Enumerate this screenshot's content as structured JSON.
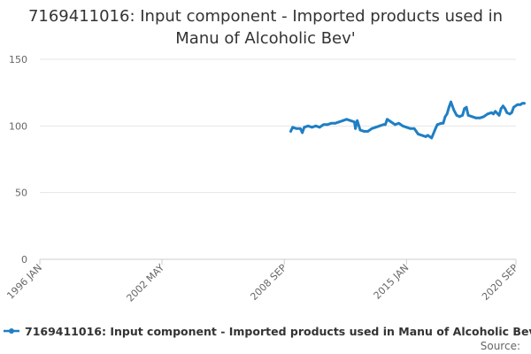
{
  "title_lines": [
    "7169411016: Input component - Imported products used in",
    "Manu of Alcoholic Bev'"
  ],
  "source_label": "Source:",
  "colors": {
    "series": "#1f7fc4",
    "grid": "#e6e6e6",
    "axis": "#cccccc"
  },
  "chart_data": {
    "type": "line",
    "title": "7169411016: Input component - Imported products used in Manu of Alcoholic Bev'",
    "xlabel": "",
    "ylabel": "",
    "ylim": [
      0,
      150
    ],
    "yticks": [
      0,
      50,
      100,
      150
    ],
    "xlim": [
      1996.0,
      2020.67
    ],
    "xticks": [
      {
        "label": "1996 JAN",
        "value": 1996.0
      },
      {
        "label": "2002 MAY",
        "value": 2002.33
      },
      {
        "label": "2008 SEP",
        "value": 2008.67
      },
      {
        "label": "2015 JAN",
        "value": 2015.0
      },
      {
        "label": "2020 SEP",
        "value": 2020.67
      }
    ],
    "grid": "horizontal",
    "legend_position": "bottom",
    "series": [
      {
        "name": "7169411016: Input component - Imported products used in Manu of Alcoholic Bev'",
        "points": [
          [
            2009.0,
            96
          ],
          [
            2009.1,
            99
          ],
          [
            2009.3,
            98
          ],
          [
            2009.5,
            98
          ],
          [
            2009.6,
            95
          ],
          [
            2009.7,
            99
          ],
          [
            2009.9,
            100
          ],
          [
            2010.1,
            99
          ],
          [
            2010.3,
            100
          ],
          [
            2010.5,
            99
          ],
          [
            2010.7,
            101
          ],
          [
            2010.9,
            101
          ],
          [
            2011.1,
            102
          ],
          [
            2011.3,
            102
          ],
          [
            2011.5,
            103
          ],
          [
            2011.7,
            104
          ],
          [
            2011.9,
            105
          ],
          [
            2012.1,
            104
          ],
          [
            2012.3,
            103
          ],
          [
            2012.35,
            98
          ],
          [
            2012.45,
            104
          ],
          [
            2012.6,
            97
          ],
          [
            2012.8,
            96
          ],
          [
            2013.0,
            96
          ],
          [
            2013.2,
            98
          ],
          [
            2013.4,
            99
          ],
          [
            2013.6,
            100
          ],
          [
            2013.8,
            101
          ],
          [
            2013.9,
            101
          ],
          [
            2014.0,
            105
          ],
          [
            2014.2,
            103
          ],
          [
            2014.4,
            101
          ],
          [
            2014.6,
            102
          ],
          [
            2014.8,
            100
          ],
          [
            2015.0,
            99
          ],
          [
            2015.2,
            98
          ],
          [
            2015.4,
            98
          ],
          [
            2015.6,
            94
          ],
          [
            2015.8,
            93
          ],
          [
            2016.0,
            92
          ],
          [
            2016.1,
            93
          ],
          [
            2016.3,
            91
          ],
          [
            2016.5,
            98
          ],
          [
            2016.6,
            101
          ],
          [
            2016.8,
            102
          ],
          [
            2016.9,
            102
          ],
          [
            2017.0,
            107
          ],
          [
            2017.1,
            109
          ],
          [
            2017.2,
            114
          ],
          [
            2017.3,
            118
          ],
          [
            2017.45,
            112
          ],
          [
            2017.6,
            108
          ],
          [
            2017.75,
            107
          ],
          [
            2017.9,
            108
          ],
          [
            2018.0,
            113
          ],
          [
            2018.1,
            114
          ],
          [
            2018.2,
            108
          ],
          [
            2018.4,
            107
          ],
          [
            2018.6,
            106
          ],
          [
            2018.8,
            106
          ],
          [
            2019.0,
            107
          ],
          [
            2019.2,
            109
          ],
          [
            2019.4,
            110
          ],
          [
            2019.5,
            109
          ],
          [
            2019.6,
            111
          ],
          [
            2019.8,
            108
          ],
          [
            2019.9,
            113
          ],
          [
            2020.0,
            115
          ],
          [
            2020.1,
            113
          ],
          [
            2020.2,
            110
          ],
          [
            2020.35,
            109
          ],
          [
            2020.45,
            110
          ],
          [
            2020.55,
            114
          ],
          [
            2020.75,
            116
          ],
          [
            2020.9,
            116
          ],
          [
            2021.0,
            117
          ],
          [
            2021.1,
            117
          ]
        ]
      }
    ]
  }
}
